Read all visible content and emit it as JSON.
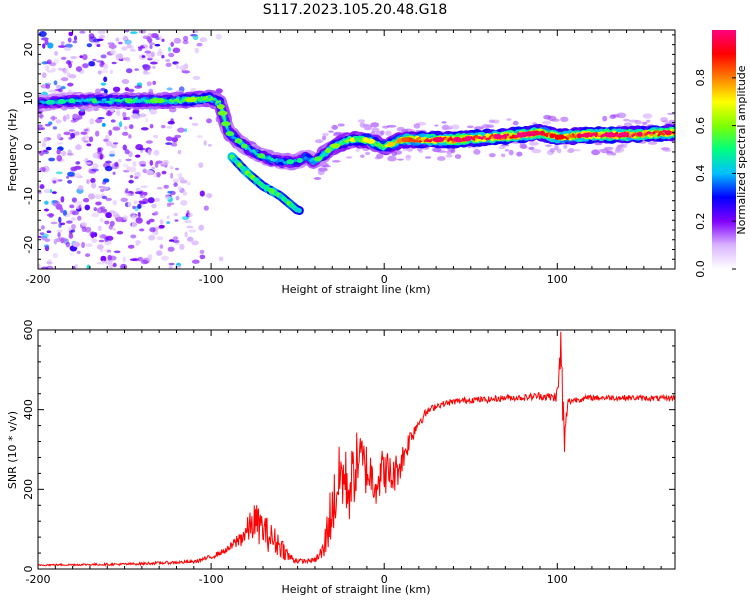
{
  "title": "S117.2023.105.20.48.G18",
  "chart_data": [
    {
      "type": "heatmap",
      "xlabel": "Height of straight line (km)",
      "ylabel": "Frequency (Hz)",
      "xlim": [
        -200,
        168
      ],
      "ylim": [
        -25,
        24
      ],
      "xticks": [
        -200,
        -100,
        0,
        100
      ],
      "yticks": [
        -20,
        -10,
        0,
        10,
        20
      ],
      "colorbar": {
        "label": "Normalized spectral amplitude",
        "range": [
          0,
          1
        ],
        "ticks": [
          "0.0",
          "0.2",
          "0.4",
          "0.6",
          "0.8"
        ],
        "colors": [
          "#ffffff",
          "#d9b3ff",
          "#8000ff",
          "#0000ff",
          "#00bfff",
          "#00ff80",
          "#80ff00",
          "#ffff00",
          "#ff8000",
          "#ff0000",
          "#ff0080"
        ]
      },
      "ridge": {
        "x": [
          -200,
          -180,
          -160,
          -140,
          -120,
          -100,
          -95,
          -90,
          -80,
          -70,
          -60,
          -50,
          -45,
          -40,
          -30,
          -20,
          -10,
          0,
          10,
          20,
          40,
          60,
          80,
          90,
          100,
          120,
          140,
          168
        ],
        "y": [
          9,
          9.5,
          9.5,
          9.5,
          9.5,
          10,
          9,
          3,
          0,
          -2,
          -3,
          -3,
          -2,
          -3,
          0,
          1.5,
          1.5,
          0,
          1.5,
          1.5,
          1.5,
          2,
          2.5,
          3,
          2,
          2.5,
          2.5,
          3
        ],
        "amplitude": [
          0.35,
          0.4,
          0.45,
          0.45,
          0.5,
          0.55,
          0.5,
          0.45,
          0.45,
          0.45,
          0.4,
          0.4,
          0.4,
          0.45,
          0.5,
          0.6,
          0.6,
          0.6,
          0.7,
          0.85,
          0.9,
          0.9,
          0.9,
          0.85,
          0.8,
          0.9,
          0.9,
          0.85
        ]
      },
      "branch": {
        "x": [
          -88,
          -80,
          -70,
          -60,
          -50
        ],
        "y": [
          -2,
          -5,
          -8,
          -10,
          -13
        ]
      }
    },
    {
      "type": "line",
      "xlabel": "Height of straight line (km)",
      "ylabel": "SNR (10 * v/v)",
      "xlim": [
        -200,
        168
      ],
      "ylim": [
        0,
        600
      ],
      "xticks": [
        -200,
        -100,
        0,
        100
      ],
      "yticks": [
        0,
        200,
        400,
        600
      ],
      "color": "#ff0000",
      "x": [
        -200,
        -150,
        -110,
        -100,
        -90,
        -80,
        -75,
        -70,
        -65,
        -60,
        -55,
        -50,
        -45,
        -40,
        -35,
        -32,
        -30,
        -25,
        -20,
        -15,
        -10,
        -5,
        0,
        5,
        10,
        15,
        20,
        25,
        30,
        40,
        50,
        60,
        70,
        80,
        90,
        98,
        100,
        101,
        102,
        103,
        104,
        106,
        110,
        120,
        140,
        160,
        168
      ],
      "y": [
        10,
        12,
        18,
        30,
        50,
        90,
        120,
        100,
        75,
        60,
        30,
        20,
        20,
        22,
        45,
        120,
        150,
        240,
        200,
        280,
        250,
        220,
        250,
        230,
        270,
        330,
        370,
        395,
        410,
        420,
        425,
        425,
        430,
        430,
        435,
        430,
        440,
        480,
        560,
        440,
        300,
        420,
        425,
        430,
        430,
        428,
        430
      ],
      "noise": [
        2,
        3,
        4,
        6,
        8,
        30,
        50,
        45,
        40,
        30,
        15,
        6,
        5,
        6,
        30,
        70,
        80,
        90,
        85,
        80,
        70,
        60,
        60,
        50,
        40,
        25,
        15,
        10,
        8,
        8,
        8,
        8,
        8,
        8,
        10,
        12,
        20,
        40,
        60,
        80,
        60,
        10,
        8,
        7,
        7,
        7,
        7
      ]
    }
  ]
}
